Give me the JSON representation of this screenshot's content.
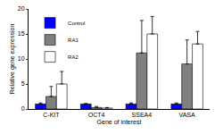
{
  "chart_data": {
    "type": "bar",
    "x_label": "Gene of interest",
    "y_label": "Relative gene expression",
    "categories": [
      "C-KIT",
      "OCT4",
      "SSEA4",
      "VASA"
    ],
    "series": [
      {
        "name": "Control",
        "color": "#0000ff",
        "values": [
          1,
          1,
          1,
          1
        ],
        "errors": [
          0.2,
          0.1,
          0.2,
          0.2
        ]
      },
      {
        "name": "RA1",
        "color": "#808080",
        "values": [
          2.5,
          0.3,
          11.2,
          9
        ],
        "errors": [
          2,
          0.2,
          6.5,
          4.8
        ]
      },
      {
        "name": "RA2",
        "color": "#ffffff",
        "values": [
          5,
          0.2,
          15,
          13
        ],
        "errors": [
          2.5,
          0.1,
          3.5,
          2.5
        ]
      }
    ],
    "ylim": [
      0,
      20
    ],
    "yticks": [
      0,
      5,
      10,
      15,
      20
    ],
    "grid": false,
    "legend": "top left"
  }
}
